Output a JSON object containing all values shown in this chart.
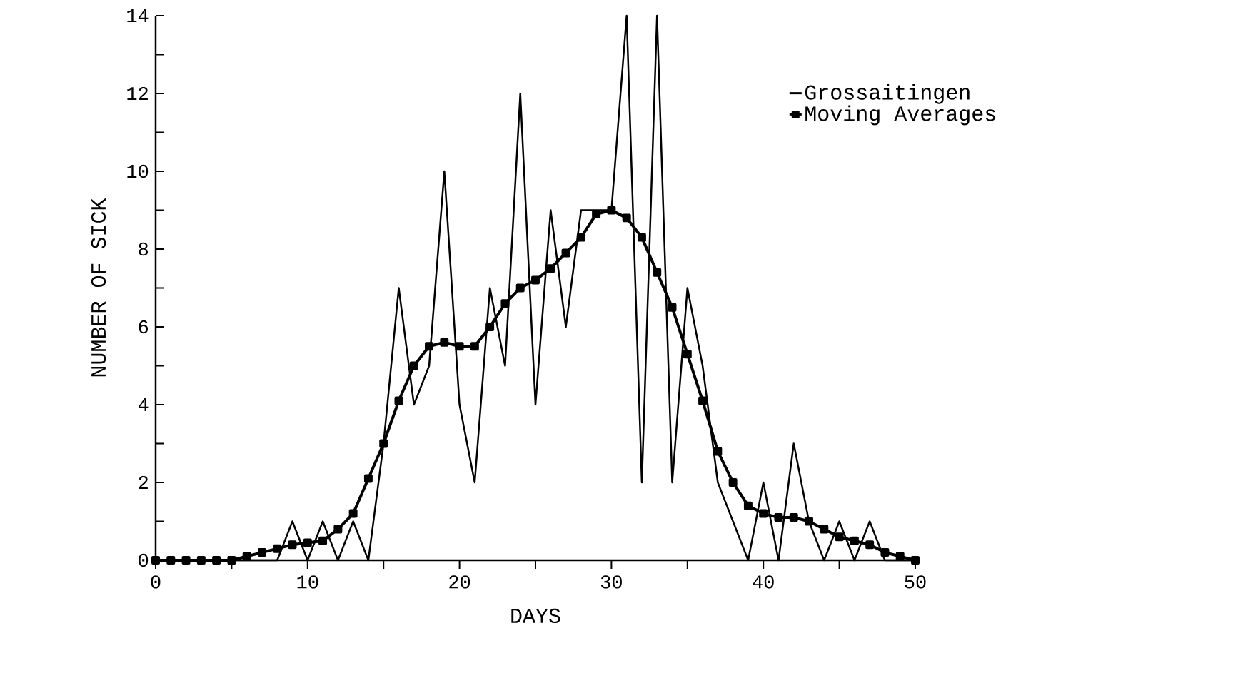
{
  "chart_data": {
    "type": "line",
    "xlabel": "DAYS",
    "ylabel": "NUMBER OF SICK",
    "x": [
      0,
      1,
      2,
      3,
      4,
      5,
      6,
      7,
      8,
      9,
      10,
      11,
      12,
      13,
      14,
      15,
      16,
      17,
      18,
      19,
      20,
      21,
      22,
      23,
      24,
      25,
      26,
      27,
      28,
      29,
      30,
      31,
      32,
      33,
      34,
      35,
      36,
      37,
      38,
      39,
      40,
      41,
      42,
      43,
      44,
      45,
      46,
      47,
      48,
      49,
      50
    ],
    "series": [
      {
        "name": "Grossaitingen",
        "color": "#000000",
        "marker": "none",
        "values": [
          0,
          0,
          0,
          0,
          0,
          0,
          0,
          0,
          0,
          1,
          0,
          1,
          0,
          1,
          0,
          3,
          7,
          4,
          5,
          10,
          4,
          2,
          7,
          5,
          12,
          4,
          9,
          6,
          9,
          9,
          9,
          14,
          2,
          14,
          2,
          7,
          5,
          2,
          1,
          0,
          2,
          0,
          3,
          1,
          0,
          1,
          0,
          1,
          0,
          0,
          0
        ]
      },
      {
        "name": "Moving Averages",
        "color": "#000000",
        "marker": "square",
        "values": [
          0,
          0,
          0,
          0,
          0,
          0,
          0.1,
          0.2,
          0.3,
          0.4,
          0.45,
          0.5,
          0.8,
          1.2,
          2.1,
          3.0,
          4.1,
          5.0,
          5.5,
          5.6,
          5.5,
          5.5,
          6.0,
          6.6,
          7.0,
          7.2,
          7.5,
          7.9,
          8.3,
          8.9,
          9.0,
          8.8,
          8.3,
          7.4,
          6.5,
          5.3,
          4.1,
          2.8,
          2.0,
          1.4,
          1.2,
          1.1,
          1.1,
          1.0,
          0.8,
          0.6,
          0.5,
          0.4,
          0.2,
          0.1,
          0.0
        ]
      }
    ],
    "xlim": [
      0,
      50
    ],
    "ylim": [
      0,
      14
    ],
    "xticks": [
      0,
      {
        "value": 5,
        "label": null
      },
      10,
      {
        "value": 15,
        "label": null
      },
      20,
      {
        "value": 25,
        "label": null
      },
      30,
      {
        "value": 35,
        "label": null
      },
      40,
      {
        "value": 45,
        "label": null
      },
      50
    ],
    "yticks": [
      0,
      {
        "value": 1,
        "label": null
      },
      2,
      {
        "value": 3,
        "label": null
      },
      4,
      {
        "value": 5,
        "label": null
      },
      6,
      {
        "value": 7,
        "label": null
      },
      8,
      {
        "value": 9,
        "label": null
      },
      10,
      {
        "value": 11,
        "label": null
      },
      12,
      {
        "value": 13,
        "label": null
      },
      14
    ],
    "legend": "top right",
    "grid": false
  }
}
